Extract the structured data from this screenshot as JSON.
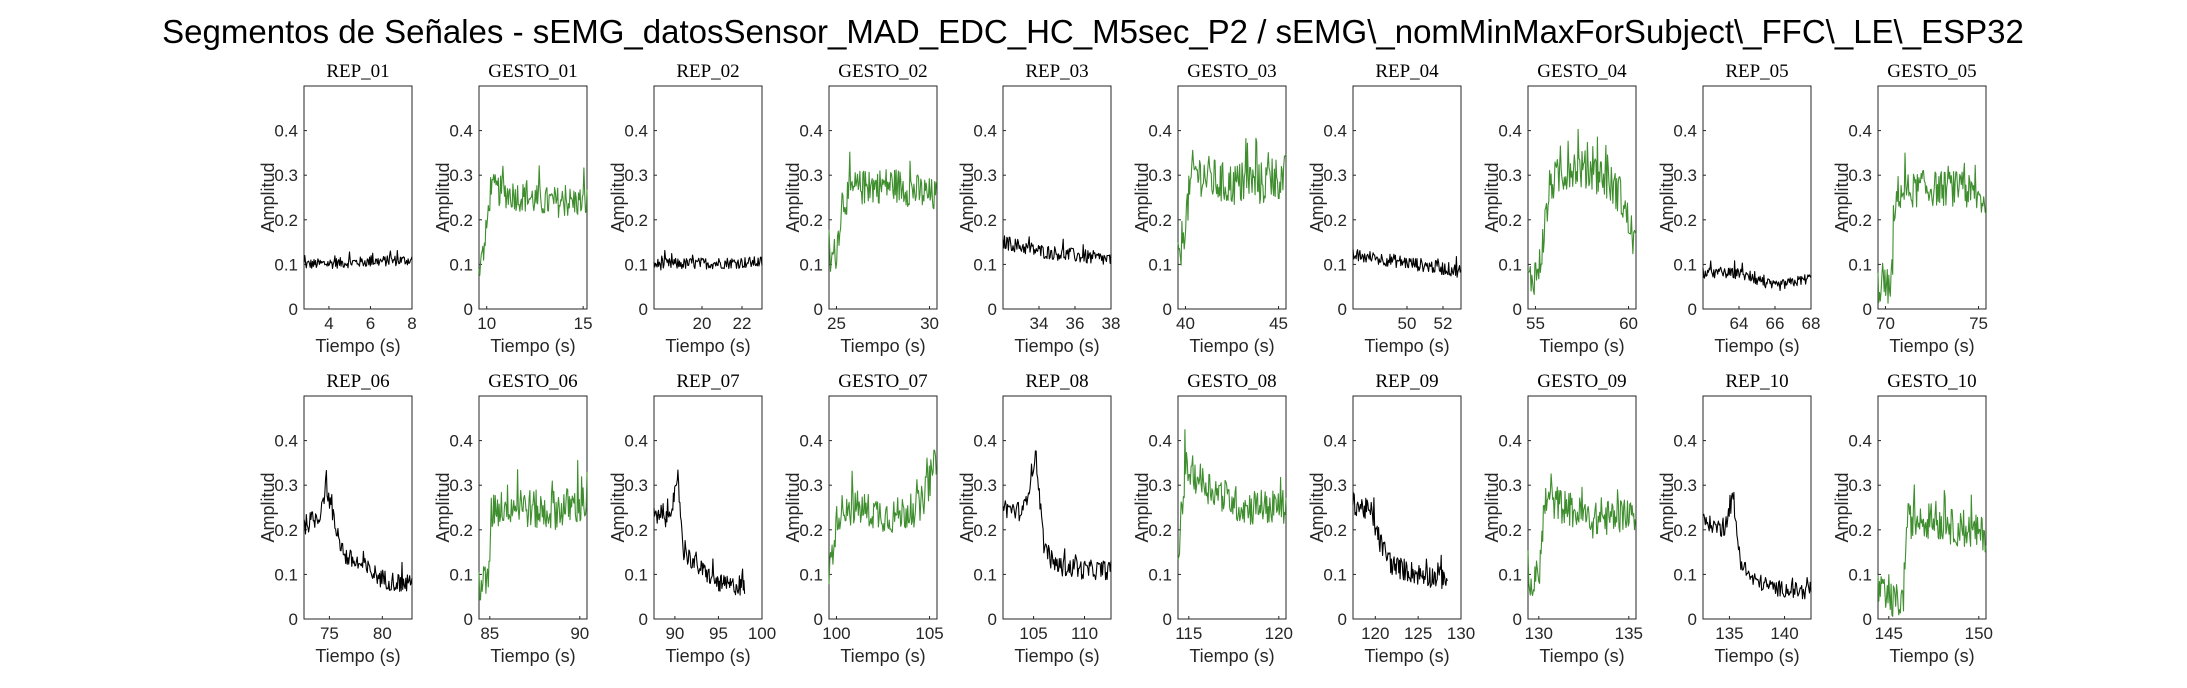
{
  "colors": {
    "rep": "#000000",
    "gesto": "#3e8e2e"
  },
  "chart_data": {
    "type": "line",
    "title": "Segmentos de Señales - sEMG_datosSensor_MAD_EDC_HC_M5sec_P2 / sEMG\\_nomMinMaxForSubject\\_FFC\\_LE\\_ESP32",
    "xlabel": "Tiempo (s)",
    "ylabel": "Amplitud",
    "ylim": [
      0,
      0.5
    ],
    "yticks": [
      0,
      0.1,
      0.2,
      0.3,
      0.4
    ],
    "subplots": [
      {
        "title": "REP_01",
        "kind": "rep",
        "xlim": [
          2.8,
          8
        ],
        "xticks": [
          4,
          6,
          8
        ],
        "profile": [
          [
            2.8,
            0.1
          ],
          [
            8,
            0.11
          ]
        ],
        "noise": 0.012
      },
      {
        "title": "GESTO_01",
        "kind": "gesto",
        "xlim": [
          9.6,
          15.2
        ],
        "xticks": [
          10,
          15
        ],
        "profile": [
          [
            9.6,
            0.08
          ],
          [
            9.9,
            0.14
          ],
          [
            10.2,
            0.27
          ],
          [
            11,
            0.26
          ],
          [
            13,
            0.24
          ],
          [
            15.2,
            0.24
          ]
        ],
        "noise": 0.035
      },
      {
        "title": "REP_02",
        "kind": "rep",
        "xlim": [
          17.6,
          23
        ],
        "xticks": [
          20,
          22
        ],
        "profile": [
          [
            17.6,
            0.1
          ],
          [
            23,
            0.105
          ]
        ],
        "noise": 0.013
      },
      {
        "title": "GESTO_02",
        "kind": "gesto",
        "xlim": [
          24.6,
          30.4
        ],
        "xticks": [
          25,
          30
        ],
        "profile": [
          [
            24.6,
            0.1
          ],
          [
            25,
            0.13
          ],
          [
            25.3,
            0.24
          ],
          [
            26,
            0.27
          ],
          [
            28,
            0.28
          ],
          [
            30.4,
            0.25
          ]
        ],
        "noise": 0.04
      },
      {
        "title": "REP_03",
        "kind": "rep",
        "xlim": [
          32,
          38
        ],
        "xticks": [
          34,
          36,
          38
        ],
        "profile": [
          [
            32,
            0.15
          ],
          [
            34,
            0.13
          ],
          [
            38,
            0.11
          ]
        ],
        "noise": 0.016
      },
      {
        "title": "GESTO_03",
        "kind": "gesto",
        "xlim": [
          39.6,
          45.4
        ],
        "xticks": [
          40,
          45
        ],
        "profile": [
          [
            39.6,
            0.1
          ],
          [
            40,
            0.2
          ],
          [
            40.4,
            0.31
          ],
          [
            42,
            0.28
          ],
          [
            44,
            0.28
          ],
          [
            45.4,
            0.3
          ]
        ],
        "noise": 0.05
      },
      {
        "title": "REP_04",
        "kind": "rep",
        "xlim": [
          47,
          53
        ],
        "xticks": [
          50,
          52
        ],
        "profile": [
          [
            47,
            0.12
          ],
          [
            49,
            0.11
          ],
          [
            53,
            0.085
          ]
        ],
        "noise": 0.015
      },
      {
        "title": "GESTO_04",
        "kind": "gesto",
        "xlim": [
          54.6,
          60.4
        ],
        "xticks": [
          55,
          60
        ],
        "profile": [
          [
            54.6,
            0.06
          ],
          [
            55.2,
            0.09
          ],
          [
            55.8,
            0.28
          ],
          [
            57,
            0.32
          ],
          [
            58.5,
            0.3
          ],
          [
            59.5,
            0.26
          ],
          [
            60.4,
            0.14
          ]
        ],
        "noise": 0.045
      },
      {
        "title": "REP_05",
        "kind": "rep",
        "xlim": [
          62,
          68
        ],
        "xticks": [
          64,
          66,
          68
        ],
        "profile": [
          [
            62,
            0.08
          ],
          [
            64,
            0.08
          ],
          [
            66,
            0.05
          ],
          [
            68,
            0.07
          ]
        ],
        "noise": 0.012
      },
      {
        "title": "GESTO_05",
        "kind": "gesto",
        "xlim": [
          69.6,
          75.4
        ],
        "xticks": [
          70,
          75
        ],
        "profile": [
          [
            69.6,
            0.05
          ],
          [
            70.3,
            0.05
          ],
          [
            70.6,
            0.26
          ],
          [
            72,
            0.27
          ],
          [
            74,
            0.27
          ],
          [
            75.4,
            0.24
          ]
        ],
        "noise": 0.04
      },
      {
        "title": "REP_06",
        "kind": "rep",
        "xlim": [
          72.6,
          82.8
        ],
        "xticks": [
          75,
          80
        ],
        "profile": [
          [
            72.6,
            0.21
          ],
          [
            74,
            0.23
          ],
          [
            74.7,
            0.3
          ],
          [
            75.6,
            0.2
          ],
          [
            76.5,
            0.14
          ],
          [
            78,
            0.12
          ],
          [
            80,
            0.09
          ],
          [
            82.8,
            0.075
          ]
        ],
        "noise": 0.022
      },
      {
        "title": "GESTO_06",
        "kind": "gesto",
        "xlim": [
          84.4,
          90.4
        ],
        "xticks": [
          85,
          90
        ],
        "profile": [
          [
            84.4,
            0.08
          ],
          [
            84.9,
            0.08
          ],
          [
            85.1,
            0.24
          ],
          [
            86,
            0.26
          ],
          [
            88,
            0.24
          ],
          [
            90.4,
            0.26
          ]
        ],
        "noise": 0.045
      },
      {
        "title": "REP_07",
        "kind": "rep",
        "xlim": [
          87.6,
          100
        ],
        "xticks": [
          90,
          95,
          100
        ],
        "profile": [
          [
            87.6,
            0.23
          ],
          [
            89,
            0.22
          ],
          [
            90.4,
            0.3
          ],
          [
            91,
            0.15
          ],
          [
            92.5,
            0.12
          ],
          [
            95,
            0.08
          ],
          [
            98,
            0.07
          ]
        ],
        "noise": 0.02
      },
      {
        "title": "GESTO_07",
        "kind": "gesto",
        "xlim": [
          99.6,
          105.4
        ],
        "xticks": [
          100,
          105
        ],
        "profile": [
          [
            99.6,
            0.1
          ],
          [
            100.1,
            0.24
          ],
          [
            101,
            0.25
          ],
          [
            103,
            0.23
          ],
          [
            104.5,
            0.25
          ],
          [
            105.4,
            0.36
          ]
        ],
        "noise": 0.04
      },
      {
        "title": "REP_08",
        "kind": "rep",
        "xlim": [
          102,
          112.6
        ],
        "xticks": [
          105,
          110
        ],
        "profile": [
          [
            102,
            0.25
          ],
          [
            104,
            0.24
          ],
          [
            105.2,
            0.37
          ],
          [
            106,
            0.17
          ],
          [
            107,
            0.12
          ],
          [
            110,
            0.11
          ],
          [
            112.6,
            0.11
          ]
        ],
        "noise": 0.022
      },
      {
        "title": "GESTO_08",
        "kind": "gesto",
        "xlim": [
          114.4,
          120.4
        ],
        "xticks": [
          115,
          120
        ],
        "profile": [
          [
            114.4,
            0.12
          ],
          [
            114.8,
            0.34
          ],
          [
            116,
            0.3
          ],
          [
            118,
            0.25
          ],
          [
            120.4,
            0.25
          ]
        ],
        "noise": 0.04
      },
      {
        "title": "REP_09",
        "kind": "rep",
        "xlim": [
          117.4,
          130
        ],
        "xticks": [
          120,
          125,
          130
        ],
        "profile": [
          [
            117.4,
            0.26
          ],
          [
            119.5,
            0.24
          ],
          [
            120.6,
            0.17
          ],
          [
            122,
            0.12
          ],
          [
            125,
            0.1
          ],
          [
            128.4,
            0.09
          ]
        ],
        "noise": 0.025
      },
      {
        "title": "GESTO_09",
        "kind": "gesto",
        "xlim": [
          129.4,
          135.4
        ],
        "xticks": [
          130,
          135
        ],
        "profile": [
          [
            129.4,
            0.06
          ],
          [
            130,
            0.1
          ],
          [
            130.4,
            0.27
          ],
          [
            131.5,
            0.25
          ],
          [
            133,
            0.22
          ],
          [
            135.4,
            0.24
          ]
        ],
        "noise": 0.04
      },
      {
        "title": "REP_10",
        "kind": "rep",
        "xlim": [
          132.6,
          142.4
        ],
        "xticks": [
          135,
          140
        ],
        "profile": [
          [
            132.6,
            0.22
          ],
          [
            134.5,
            0.2
          ],
          [
            135.3,
            0.27
          ],
          [
            136,
            0.13
          ],
          [
            137,
            0.09
          ],
          [
            139,
            0.07
          ],
          [
            142.4,
            0.06
          ]
        ],
        "noise": 0.018
      },
      {
        "title": "GESTO_10",
        "kind": "gesto",
        "xlim": [
          144.4,
          150.4
        ],
        "xticks": [
          145,
          150
        ],
        "profile": [
          [
            144.4,
            0.07
          ],
          [
            144.9,
            0.04
          ],
          [
            145.8,
            0.04
          ],
          [
            146,
            0.22
          ],
          [
            147.5,
            0.22
          ],
          [
            149,
            0.2
          ],
          [
            150.4,
            0.19
          ]
        ],
        "noise": 0.04
      }
    ]
  }
}
